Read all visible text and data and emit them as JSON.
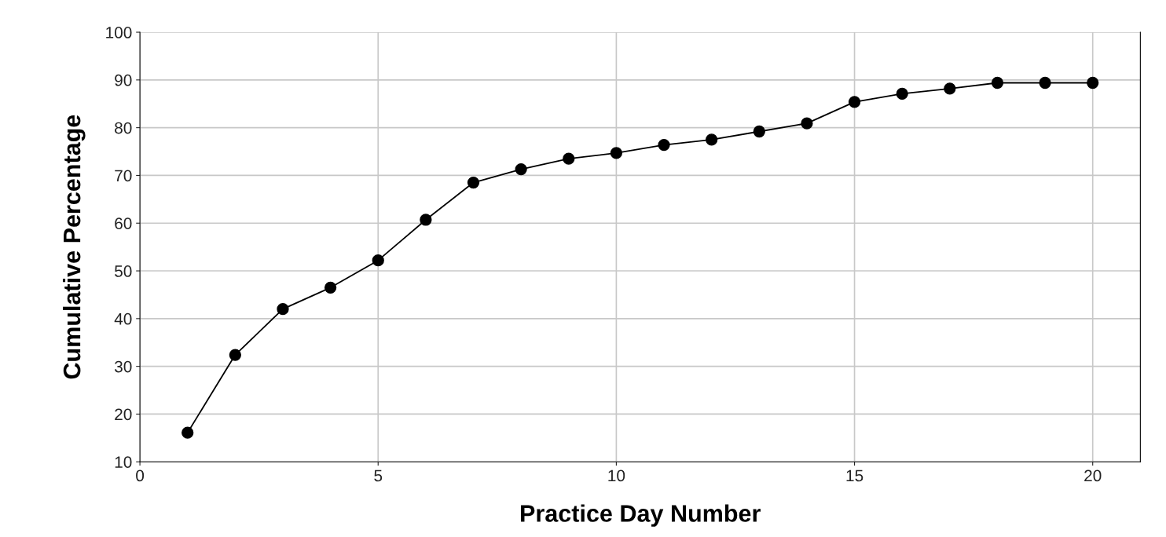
{
  "chart_data": {
    "type": "line",
    "xlabel": "Practice Day Number",
    "ylabel": "Cumulative Percentage",
    "x": [
      1,
      2,
      3,
      4,
      5,
      6,
      7,
      8,
      9,
      10,
      11,
      12,
      13,
      14,
      15,
      16,
      17,
      18,
      19,
      20
    ],
    "series": [
      {
        "color": "#000000",
        "values": [
          16.1,
          32.4,
          42.0,
          46.5,
          52.2,
          60.7,
          68.5,
          71.3,
          73.5,
          74.7,
          76.4,
          77.5,
          79.2,
          80.9,
          85.4,
          87.1,
          88.2,
          89.4,
          89.4,
          89.4
        ]
      }
    ],
    "xlim": [
      0,
      21
    ],
    "xticks": [
      0,
      5,
      10,
      15,
      20
    ],
    "ylim": [
      10,
      100
    ],
    "yticks": [
      10,
      20,
      30,
      40,
      50,
      60,
      70,
      80,
      90,
      100
    ],
    "grid": true,
    "marker": "circle",
    "line_style": "solid",
    "legend": false
  }
}
